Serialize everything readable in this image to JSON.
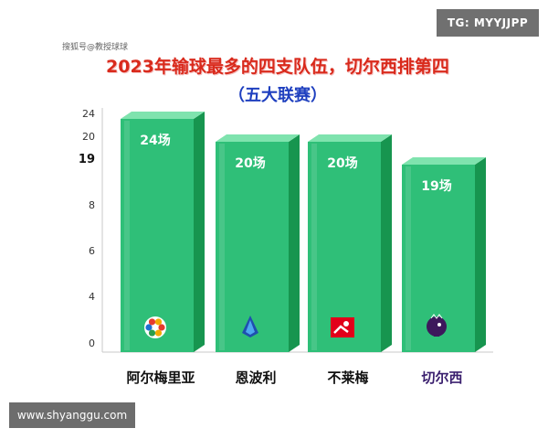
{
  "watermarks": {
    "top_right": "TG: MYYJJPP",
    "bottom_left": "www.shyanggu.com"
  },
  "source_label": "搜狐号@教授球球",
  "colors": {
    "bar": "#2fbf78",
    "bar_top": "#7fe3ae",
    "bar_side": "#17954f",
    "title": "#d92a1c",
    "subtitle": "#1e3fbf"
  },
  "chart_data": {
    "type": "bar",
    "title": "2023年输球最多的四支队伍，切尔西排第四",
    "subtitle": "（五大联赛）",
    "categories": [
      "阿尔梅里亚",
      "恩波利",
      "不莱梅",
      "切尔西"
    ],
    "values": [
      24,
      20,
      20,
      19
    ],
    "data_labels": [
      "24场",
      "20场",
      "20场",
      "19场"
    ],
    "category_icons": [
      "laliga-logo-icon",
      "serie-a-logo-icon",
      "bundesliga-logo-icon",
      "premier-league-lion-icon"
    ],
    "ytick_labels": [
      "0",
      "4",
      "6",
      "8",
      "19",
      "20",
      "24"
    ],
    "ytick_bold": "19",
    "xlabel": "",
    "ylabel": "",
    "grid": false,
    "legend": "none"
  }
}
